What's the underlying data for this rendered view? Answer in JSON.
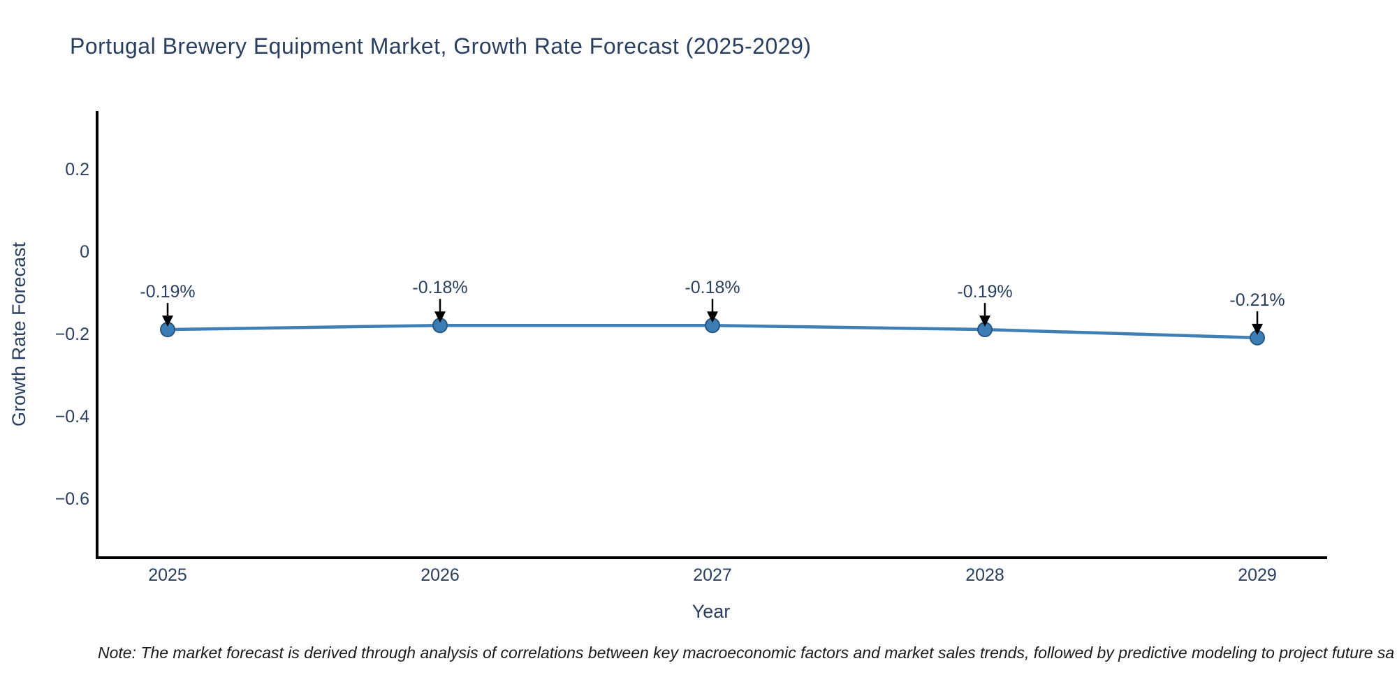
{
  "chart_data": {
    "type": "line",
    "title": "Portugal Brewery Equipment Market, Growth Rate Forecast (2025-2029)",
    "xlabel": "Year",
    "ylabel": "Growth Rate Forecast",
    "x": [
      2025,
      2026,
      2027,
      2028,
      2029
    ],
    "values": [
      -0.19,
      -0.18,
      -0.18,
      -0.19,
      -0.21
    ],
    "point_labels": [
      "-0.19%",
      "-0.18%",
      "-0.18%",
      "-0.19%",
      "-0.21%"
    ],
    "x_tick_labels": [
      "2025",
      "2026",
      "2027",
      "2028",
      "2029"
    ],
    "y_ticks": [
      0.2,
      0,
      -0.2,
      -0.4,
      -0.6
    ],
    "y_tick_labels": [
      "0.2",
      "0",
      "−0.2",
      "−0.4",
      "−0.6"
    ],
    "ylim": [
      -0.744,
      0.341
    ],
    "grid": false,
    "legend": false,
    "annotations_have_arrows": true,
    "colors": {
      "line": "#3f7fb5",
      "marker_fill": "#3c7db6",
      "marker_edge": "#27567f",
      "arrow": "#000000",
      "axis_line": "#000000",
      "text": "#2a3f5f",
      "note_text": "#1a1a1a",
      "background": "#ffffff"
    }
  },
  "note": {
    "text": "Note: The market forecast is derived through analysis of correlations between key macroeconomic factors and market sales trends, followed by predictive modeling to project future sa"
  }
}
